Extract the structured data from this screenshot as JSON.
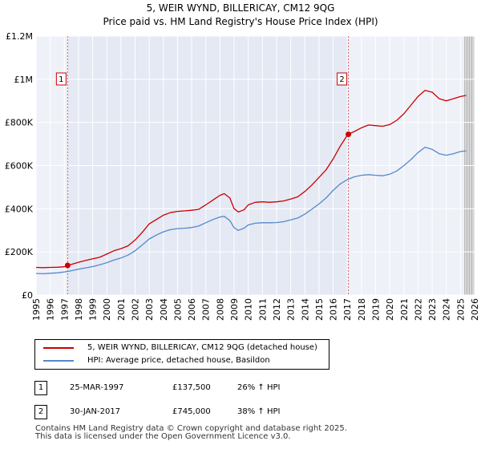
{
  "title_line1": "5, WEIR WYND, BILLERICAY, CM12 9QG",
  "title_line2": "Price paid vs. HM Land Registry's House Price Index (HPI)",
  "chart_data": {
    "type": "line",
    "xlim": [
      1995,
      2026
    ],
    "ylim": [
      0,
      1200000
    ],
    "x_ticks": [
      1995,
      1996,
      1997,
      1998,
      1999,
      2000,
      2001,
      2002,
      2003,
      2004,
      2005,
      2006,
      2007,
      2008,
      2009,
      2010,
      2011,
      2012,
      2013,
      2014,
      2015,
      2016,
      2017,
      2018,
      2019,
      2020,
      2021,
      2022,
      2023,
      2024,
      2025,
      2026
    ],
    "y_ticks": [
      {
        "value": 0,
        "label": "£0"
      },
      {
        "value": 200000,
        "label": "£200K"
      },
      {
        "value": 400000,
        "label": "£400K"
      },
      {
        "value": 600000,
        "label": "£600K"
      },
      {
        "value": 800000,
        "label": "£800K"
      },
      {
        "value": 1000000,
        "label": "£1M"
      },
      {
        "value": 1200000,
        "label": "£1.2M"
      }
    ],
    "grid": true,
    "series": [
      {
        "name": "5, WEIR WYND, BILLERICAY, CM12 9QG (detached house)",
        "color": "#cc0000",
        "points": [
          [
            1995.0,
            128000
          ],
          [
            1995.5,
            127000
          ],
          [
            1996.0,
            128000
          ],
          [
            1996.5,
            129000
          ],
          [
            1997.0,
            131000
          ],
          [
            1997.23,
            137500
          ],
          [
            1997.5,
            142000
          ],
          [
            1998.0,
            152000
          ],
          [
            1998.5,
            160000
          ],
          [
            1999.0,
            168000
          ],
          [
            1999.5,
            175000
          ],
          [
            2000.0,
            190000
          ],
          [
            2000.5,
            205000
          ],
          [
            2001.0,
            215000
          ],
          [
            2001.5,
            228000
          ],
          [
            2002.0,
            255000
          ],
          [
            2002.5,
            290000
          ],
          [
            2003.0,
            330000
          ],
          [
            2003.5,
            350000
          ],
          [
            2004.0,
            370000
          ],
          [
            2004.5,
            382000
          ],
          [
            2005.0,
            388000
          ],
          [
            2005.5,
            390000
          ],
          [
            2006.0,
            393000
          ],
          [
            2006.5,
            397000
          ],
          [
            2007.0,
            418000
          ],
          [
            2007.5,
            440000
          ],
          [
            2008.0,
            462000
          ],
          [
            2008.3,
            470000
          ],
          [
            2008.7,
            450000
          ],
          [
            2009.0,
            400000
          ],
          [
            2009.3,
            385000
          ],
          [
            2009.7,
            395000
          ],
          [
            2010.0,
            418000
          ],
          [
            2010.5,
            430000
          ],
          [
            2011.0,
            432000
          ],
          [
            2011.5,
            430000
          ],
          [
            2012.0,
            432000
          ],
          [
            2012.5,
            436000
          ],
          [
            2013.0,
            445000
          ],
          [
            2013.5,
            455000
          ],
          [
            2014.0,
            480000
          ],
          [
            2014.5,
            510000
          ],
          [
            2015.0,
            545000
          ],
          [
            2015.5,
            580000
          ],
          [
            2016.0,
            630000
          ],
          [
            2016.5,
            690000
          ],
          [
            2016.9,
            730000
          ],
          [
            2017.08,
            745000
          ],
          [
            2017.5,
            758000
          ],
          [
            2018.0,
            775000
          ],
          [
            2018.5,
            788000
          ],
          [
            2019.0,
            785000
          ],
          [
            2019.5,
            782000
          ],
          [
            2020.0,
            790000
          ],
          [
            2020.5,
            810000
          ],
          [
            2021.0,
            840000
          ],
          [
            2021.5,
            880000
          ],
          [
            2022.0,
            920000
          ],
          [
            2022.5,
            948000
          ],
          [
            2023.0,
            940000
          ],
          [
            2023.5,
            910000
          ],
          [
            2024.0,
            900000
          ],
          [
            2024.5,
            910000
          ],
          [
            2025.0,
            920000
          ],
          [
            2025.4,
            925000
          ]
        ]
      },
      {
        "name": "HPI: Average price, detached house, Basildon",
        "color": "#5588cc",
        "points": [
          [
            1995.0,
            100000
          ],
          [
            1995.5,
            99000
          ],
          [
            1996.0,
            101000
          ],
          [
            1996.5,
            103000
          ],
          [
            1997.0,
            107000
          ],
          [
            1997.5,
            113000
          ],
          [
            1998.0,
            120000
          ],
          [
            1998.5,
            126000
          ],
          [
            1999.0,
            132000
          ],
          [
            1999.5,
            140000
          ],
          [
            2000.0,
            150000
          ],
          [
            2000.5,
            162000
          ],
          [
            2001.0,
            172000
          ],
          [
            2001.5,
            185000
          ],
          [
            2002.0,
            205000
          ],
          [
            2002.5,
            232000
          ],
          [
            2003.0,
            260000
          ],
          [
            2003.5,
            278000
          ],
          [
            2004.0,
            293000
          ],
          [
            2004.5,
            303000
          ],
          [
            2005.0,
            308000
          ],
          [
            2005.5,
            310000
          ],
          [
            2006.0,
            313000
          ],
          [
            2006.5,
            320000
          ],
          [
            2007.0,
            335000
          ],
          [
            2007.5,
            350000
          ],
          [
            2008.0,
            362000
          ],
          [
            2008.3,
            365000
          ],
          [
            2008.7,
            345000
          ],
          [
            2009.0,
            312000
          ],
          [
            2009.3,
            300000
          ],
          [
            2009.7,
            310000
          ],
          [
            2010.0,
            325000
          ],
          [
            2010.5,
            333000
          ],
          [
            2011.0,
            335000
          ],
          [
            2011.5,
            335000
          ],
          [
            2012.0,
            336000
          ],
          [
            2012.5,
            340000
          ],
          [
            2013.0,
            348000
          ],
          [
            2013.5,
            357000
          ],
          [
            2014.0,
            375000
          ],
          [
            2014.5,
            398000
          ],
          [
            2015.0,
            422000
          ],
          [
            2015.5,
            450000
          ],
          [
            2016.0,
            485000
          ],
          [
            2016.5,
            515000
          ],
          [
            2017.0,
            535000
          ],
          [
            2017.5,
            548000
          ],
          [
            2018.0,
            555000
          ],
          [
            2018.5,
            558000
          ],
          [
            2019.0,
            555000
          ],
          [
            2019.5,
            553000
          ],
          [
            2020.0,
            560000
          ],
          [
            2020.5,
            575000
          ],
          [
            2021.0,
            600000
          ],
          [
            2021.5,
            628000
          ],
          [
            2022.0,
            660000
          ],
          [
            2022.5,
            685000
          ],
          [
            2023.0,
            675000
          ],
          [
            2023.5,
            655000
          ],
          [
            2024.0,
            648000
          ],
          [
            2024.5,
            655000
          ],
          [
            2025.0,
            665000
          ],
          [
            2025.4,
            668000
          ]
        ]
      }
    ],
    "sales": [
      {
        "label": "1",
        "x": 1997.23,
        "value": 137500
      },
      {
        "label": "2",
        "x": 2017.08,
        "value": 745000
      }
    ],
    "shaded_from": 2025.3
  },
  "legend": {
    "red_label": "5, WEIR WYND, BILLERICAY, CM12 9QG (detached house)",
    "blue_label": "HPI: Average price, detached house, Basildon"
  },
  "table": [
    {
      "num": "1",
      "date": "25-MAR-1997",
      "price": "£137,500",
      "hpi": "26% ↑ HPI"
    },
    {
      "num": "2",
      "date": "30-JAN-2017",
      "price": "£745,000",
      "hpi": "38% ↑ HPI"
    }
  ],
  "footer_line1": "Contains HM Land Registry data © Crown copyright and database right 2025.",
  "footer_line2": "This data is licensed under the Open Government Licence v3.0."
}
